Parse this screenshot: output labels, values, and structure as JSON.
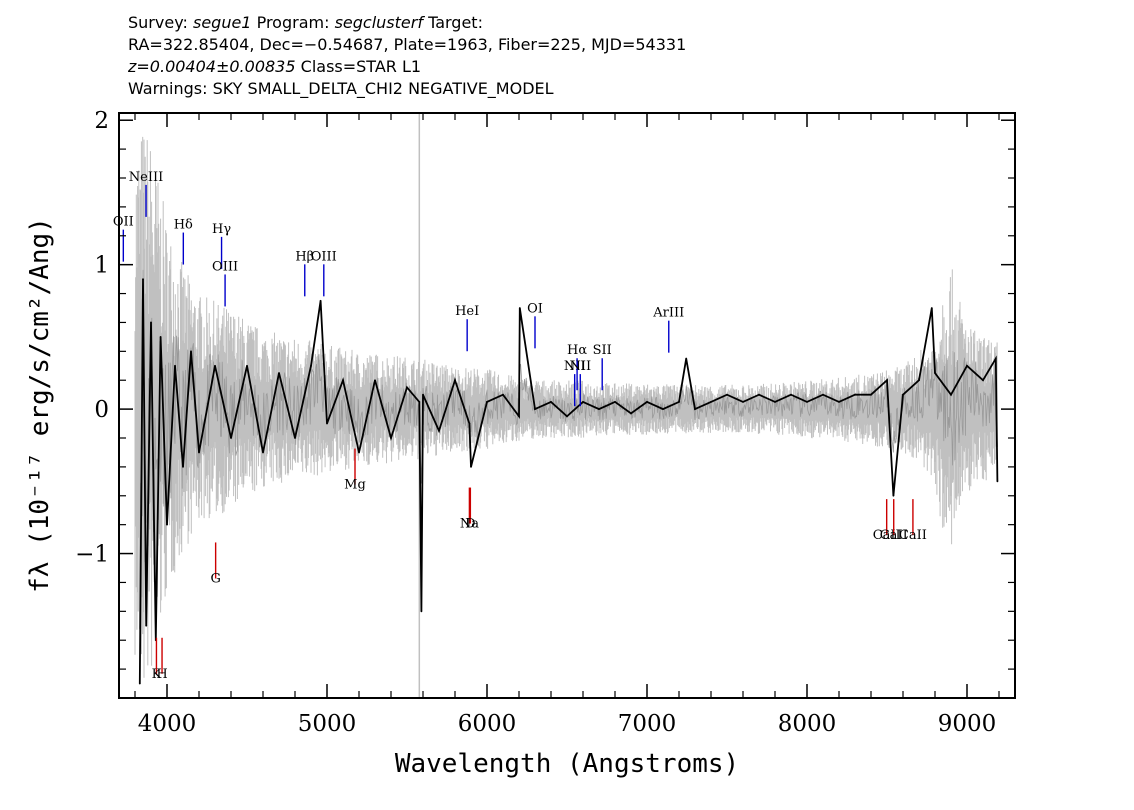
{
  "header": {
    "survey_label": "Survey:",
    "survey": "segue1",
    "program_label": "Program:",
    "program": "segclusterf",
    "target_label": "Target:",
    "line2": "RA=322.85404, Dec=−0.54687, Plate=1963, Fiber=225, MJD=54331",
    "redshift": "z=0.00404±0.00835",
    "class_text": "Class=STAR L1",
    "warnings": "Warnings: SKY SMALL_DELTA_CHI2 NEGATIVE_MODEL"
  },
  "chart_data": {
    "type": "line",
    "xlabel": "Wavelength (Angstroms)",
    "ylabel": "fλ (10⁻¹⁷ erg/s/cm²/Ang)",
    "xlim": [
      3700,
      9300
    ],
    "ylim": [
      -2.0,
      2.05
    ],
    "x_ticks": [
      4000,
      5000,
      6000,
      7000,
      8000,
      9000
    ],
    "y_ticks": [
      -1,
      0,
      1,
      2
    ],
    "x_minor_step": 200,
    "y_minor_step": 0.2,
    "series": [
      {
        "role": "flux",
        "color": "#000000",
        "x": [
          3830,
          3850,
          3870,
          3900,
          3930,
          3960,
          4000,
          4050,
          4100,
          4150,
          4200,
          4300,
          4400,
          4500,
          4600,
          4700,
          4800,
          4900,
          4960,
          5000,
          5100,
          5200,
          5300,
          5400,
          5500,
          5577,
          5590,
          5600,
          5700,
          5800,
          5890,
          5900,
          6000,
          6100,
          6200,
          6205,
          6300,
          6400,
          6500,
          6600,
          6700,
          6800,
          6900,
          7000,
          7100,
          7200,
          7245,
          7300,
          7400,
          7500,
          7600,
          7700,
          7800,
          7900,
          8000,
          8100,
          8200,
          8300,
          8400,
          8500,
          8540,
          8600,
          8700,
          8780,
          8800,
          8900,
          9000,
          9100,
          9180,
          9190
        ],
        "y": [
          -1.9,
          0.9,
          -1.5,
          0.6,
          -1.6,
          0.5,
          -0.8,
          0.3,
          -0.4,
          0.4,
          -0.3,
          0.3,
          -0.2,
          0.3,
          -0.3,
          0.25,
          -0.2,
          0.3,
          0.75,
          -0.1,
          0.2,
          -0.3,
          0.2,
          -0.2,
          0.15,
          0.05,
          -1.4,
          0.1,
          -0.15,
          0.2,
          -0.1,
          -0.4,
          0.05,
          0.1,
          -0.05,
          0.7,
          0.0,
          0.05,
          -0.05,
          0.05,
          0.0,
          0.05,
          -0.03,
          0.05,
          0.0,
          0.05,
          0.35,
          0.0,
          0.05,
          0.1,
          0.05,
          0.1,
          0.05,
          0.1,
          0.05,
          0.1,
          0.05,
          0.1,
          0.1,
          0.2,
          -0.6,
          0.1,
          0.2,
          0.7,
          0.25,
          0.1,
          0.3,
          0.2,
          0.35,
          -0.5
        ]
      },
      {
        "role": "error",
        "color": "#c0c0c0",
        "x": [
          3800,
          3850,
          3900,
          3950,
          4000,
          4100,
          4200,
          4400,
          4600,
          4800,
          5000,
          5200,
          5400,
          5600,
          5800,
          6000,
          6200,
          6400,
          6600,
          6800,
          7000,
          7200,
          7400,
          7600,
          7800,
          8000,
          8200,
          8400,
          8600,
          8800,
          8850,
          8900,
          9000,
          9100,
          9190
        ],
        "y": [
          1.8,
          2.0,
          1.9,
          1.6,
          1.3,
          1.0,
          0.8,
          0.7,
          0.55,
          0.5,
          0.45,
          0.4,
          0.38,
          0.35,
          0.3,
          0.28,
          0.22,
          0.2,
          0.2,
          0.18,
          0.18,
          0.17,
          0.17,
          0.17,
          0.18,
          0.2,
          0.22,
          0.25,
          0.3,
          0.5,
          0.9,
          1.0,
          0.6,
          0.5,
          0.5
        ]
      }
    ],
    "sky_line_x": 5577,
    "emission_lines": [
      {
        "label": "OII",
        "x": 3727,
        "y": 1.27,
        "color": "#0000cc"
      },
      {
        "label": "NeIII",
        "x": 3869,
        "y": 1.58,
        "color": "#0000cc"
      },
      {
        "label": "Hδ",
        "x": 4102,
        "y": 1.25,
        "color": "#0000cc"
      },
      {
        "label": "Hγ",
        "x": 4341,
        "y": 1.22,
        "color": "#0000cc"
      },
      {
        "label": "OIII",
        "x": 4363,
        "y": 0.96,
        "color": "#0000cc"
      },
      {
        "label": "Hβ",
        "x": 4861,
        "y": 1.03,
        "color": "#0000cc"
      },
      {
        "label": "OIII",
        "x": 4980,
        "y": 1.03,
        "color": "#0000cc"
      },
      {
        "label": "HeI",
        "x": 5876,
        "y": 0.65,
        "color": "#0000cc"
      },
      {
        "label": "OI",
        "x": 6300,
        "y": 0.67,
        "color": "#0000cc"
      },
      {
        "label": "NII",
        "x": 6548,
        "y": 0.27,
        "color": "#0000cc"
      },
      {
        "label": "Hα",
        "x": 6563,
        "y": 0.38,
        "color": "#0000cc"
      },
      {
        "label": "NII",
        "x": 6583,
        "y": 0.27,
        "color": "#0000cc"
      },
      {
        "label": "SII",
        "x": 6720,
        "y": 0.38,
        "color": "#0000cc"
      },
      {
        "label": "ArIII",
        "x": 7136,
        "y": 0.64,
        "color": "#0000cc"
      }
    ],
    "absorption_lines": [
      {
        "label": "K",
        "x": 3934,
        "y": -1.86,
        "color": "#cc0000"
      },
      {
        "label": "H",
        "x": 3969,
        "y": -1.86,
        "color": "#cc0000"
      },
      {
        "label": "G",
        "x": 4304,
        "y": -1.2,
        "color": "#cc0000"
      },
      {
        "label": "Mg",
        "x": 5175,
        "y": -0.55,
        "color": "#cc0000"
      },
      {
        "label": "Na",
        "x": 5890,
        "y": -0.82,
        "color": "#cc0000"
      },
      {
        "label": "D",
        "x": 5896,
        "y": -0.82,
        "color": "#cc0000"
      },
      {
        "label": "CaII",
        "x": 8498,
        "y": -0.9,
        "color": "#cc0000"
      },
      {
        "label": "CaII",
        "x": 8542,
        "y": -0.9,
        "color": "#cc0000"
      },
      {
        "label": "CaII",
        "x": 8662,
        "y": -0.9,
        "color": "#cc0000"
      }
    ]
  }
}
